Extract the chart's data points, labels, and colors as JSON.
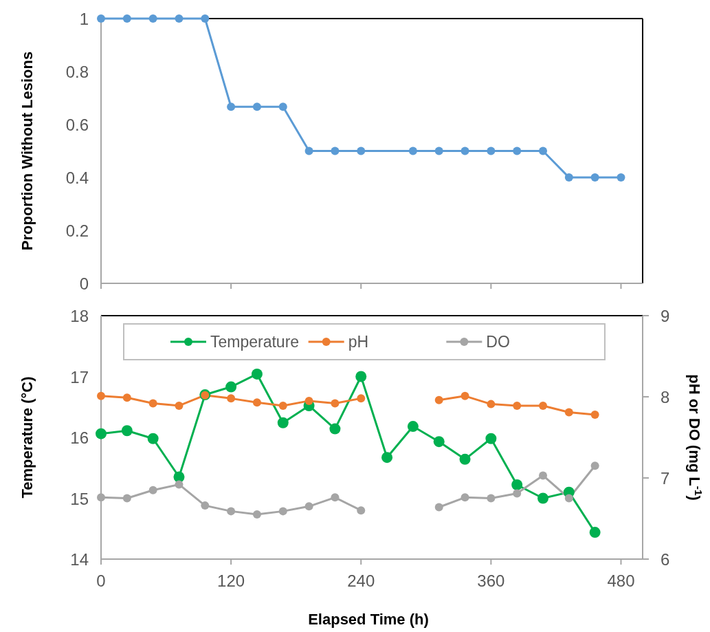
{
  "chart_data": [
    {
      "type": "line",
      "ylabel": "Proportion Without Lesions",
      "xlim": [
        0,
        500
      ],
      "xticks": [
        {
          "value": 0,
          "label": null
        },
        {
          "value": 120,
          "label": null
        },
        {
          "value": 240,
          "label": null
        },
        {
          "value": 360,
          "label": null
        },
        {
          "value": 480,
          "label": null
        }
      ],
      "ylim": [
        0,
        1
      ],
      "yticks": [
        0,
        0.2,
        0.4,
        0.6,
        0.8,
        1
      ],
      "tick_labels": "y",
      "marker": "circle",
      "grid": false,
      "legend": false,
      "series": [
        {
          "color": "#5b9bd5",
          "x": [
            0,
            24,
            48,
            72,
            96,
            120,
            144,
            168,
            192,
            216,
            240,
            288,
            312,
            336,
            360,
            384,
            408,
            432,
            456,
            480
          ],
          "values": [
            1,
            1,
            1,
            1,
            1,
            0.667,
            0.667,
            0.667,
            0.5,
            0.5,
            0.5,
            0.5,
            0.5,
            0.5,
            0.5,
            0.5,
            0.5,
            0.4,
            0.4,
            0.4
          ]
        }
      ]
    },
    {
      "type": "line",
      "xlabel": "Elapsed Time (h)",
      "ylabel": "Temperature (°C)",
      "y2label": "pH or DO (mg L$^{-1}$)",
      "xlim": [
        0,
        500
      ],
      "xticks": [
        0,
        120,
        240,
        360,
        480
      ],
      "ylim": [
        14,
        18
      ],
      "yticks": [
        14,
        15,
        16,
        17,
        18
      ],
      "y2lim": [
        6,
        9
      ],
      "y2ticks": [
        6,
        7,
        8,
        9
      ],
      "marker": "circle",
      "grid": false,
      "legend": "top",
      "x": [
        0,
        24,
        48,
        72,
        96,
        120,
        144,
        168,
        192,
        216,
        240,
        264,
        288,
        312,
        336,
        360,
        384,
        408,
        432,
        456
      ],
      "series": [
        {
          "name": "Temperature",
          "color": "#00b050",
          "values": [
            16.06,
            16.11,
            15.98,
            15.35,
            16.7,
            16.83,
            17.04,
            16.24,
            16.52,
            16.14,
            17.0,
            15.67,
            16.18,
            15.93,
            15.64,
            15.98,
            15.22,
            15.0,
            15.1,
            14.44
          ]
        },
        {
          "name": "pH",
          "color": "#ed7d31",
          "axis": "y2",
          "values": [
            8.01,
            7.99,
            7.92,
            7.89,
            8.02,
            7.98,
            7.93,
            7.89,
            7.95,
            7.92,
            7.98,
            null,
            null,
            7.96,
            8.01,
            7.91,
            7.89,
            7.89,
            7.81,
            7.78
          ]
        },
        {
          "name": "DO",
          "color": "#a5a5a5",
          "axis": "y2",
          "values": [
            6.76,
            6.75,
            6.85,
            6.92,
            6.66,
            6.59,
            6.55,
            6.59,
            6.65,
            6.76,
            6.6,
            null,
            null,
            6.64,
            6.76,
            6.75,
            6.81,
            7.03,
            6.75,
            7.15
          ]
        }
      ]
    }
  ]
}
